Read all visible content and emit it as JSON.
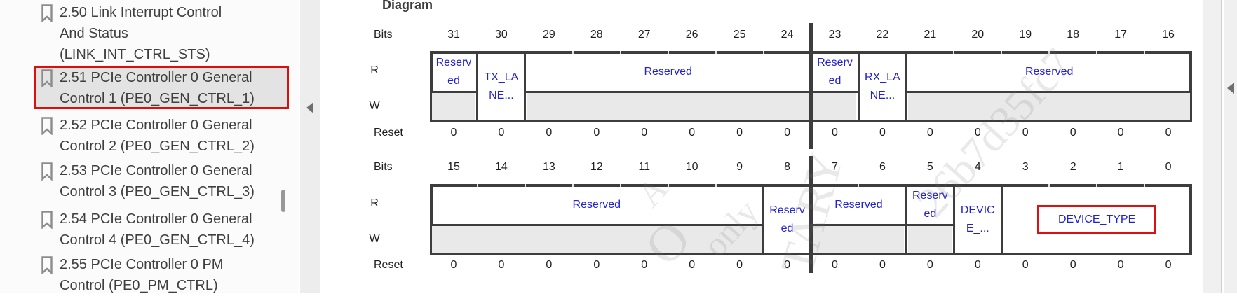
{
  "sidebar": {
    "items": [
      {
        "label": "2.50 Link Interrupt Control\nAnd Status\n(LINK_INT_CTRL_STS)",
        "selected": false
      },
      {
        "label": "2.51 PCIe Controller 0 General\nControl 1 (PE0_GEN_CTRL_1)",
        "selected": true
      },
      {
        "label": "2.52 PCIe Controller 0 General\nControl 2 (PE0_GEN_CTRL_2)",
        "selected": false
      },
      {
        "label": "2.53 PCIe Controller 0 General\nControl 3 (PE0_GEN_CTRL_3)",
        "selected": false
      },
      {
        "label": "2.54 PCIe Controller 0 General\nControl 4 (PE0_GEN_CTRL_4)",
        "selected": false
      },
      {
        "label": "2.55 PCIe Controller 0 PM\nControl (PE0_PM_CTRL)",
        "selected": false
      }
    ]
  },
  "content": {
    "heading": "Diagram",
    "row_labels": {
      "bits": "Bits",
      "read": "R",
      "write": "W",
      "reset": "Reset"
    },
    "register_rows": [
      {
        "bit_numbers": [
          "31",
          "30",
          "29",
          "28",
          "27",
          "26",
          "25",
          "24",
          "23",
          "22",
          "21",
          "20",
          "19",
          "18",
          "17",
          "16"
        ],
        "fields": [
          {
            "name": "reserved-bit31",
            "text": "Reserv\ned",
            "span": 1,
            "access": "R"
          },
          {
            "name": "tx-lane-field",
            "text": "TX_LA\nNE...",
            "span": 1,
            "access": "RW"
          },
          {
            "name": "reserved-bits29-24",
            "text": "Reserved",
            "span": 6,
            "access": "R"
          },
          {
            "name": "reserved-bit23",
            "text": "Reserv\ned",
            "span": 1,
            "access": "R"
          },
          {
            "name": "rx-lane-field",
            "text": "RX_LA\nNE...",
            "span": 1,
            "access": "RW"
          },
          {
            "name": "reserved-bits21-16",
            "text": "Reserved",
            "span": 6,
            "access": "R"
          }
        ],
        "reset_values": [
          "0",
          "0",
          "0",
          "0",
          "0",
          "0",
          "0",
          "0",
          "0",
          "0",
          "0",
          "0",
          "0",
          "0",
          "0",
          "0"
        ]
      },
      {
        "bit_numbers": [
          "15",
          "14",
          "13",
          "12",
          "11",
          "10",
          "9",
          "8",
          "7",
          "6",
          "5",
          "4",
          "3",
          "2",
          "1",
          "0"
        ],
        "fields": [
          {
            "name": "reserved-bits15-9",
            "text": "Reserved",
            "span": 7,
            "access": "R"
          },
          {
            "name": "reserved-bit8",
            "text": "Reserv\ned",
            "span": 1,
            "access": "RW"
          },
          {
            "name": "reserved-bits7-6",
            "text": "Reserved",
            "span": 2,
            "access": "R"
          },
          {
            "name": "reserved-bit5",
            "text": "Reserv\ned",
            "span": 1,
            "access": "R"
          },
          {
            "name": "device-field-bit4",
            "text": "DEVIC\nE_...",
            "span": 1,
            "access": "RW"
          },
          {
            "name": "device-type-field",
            "text": "DEVICE_TYPE",
            "span": 4,
            "access": "RW",
            "highlighted": true
          }
        ],
        "reset_values": [
          "0",
          "0",
          "0",
          "0",
          "0",
          "0",
          "0",
          "0",
          "0",
          "0",
          "0",
          "0",
          "0",
          "0",
          "0",
          "0"
        ]
      }
    ],
    "watermark_fragments": [
      "A",
      "only",
      "O",
      "TARY",
      "26b7d35fc7"
    ]
  },
  "colors": {
    "field_text_blue": "#2222d4",
    "table_border": "#3d3d3d",
    "write_row_fill": "#e9e9e9",
    "highlight_red": "#dd1111",
    "selection_red": "#dc0f0f",
    "selection_fill": "#e3e3e3"
  }
}
